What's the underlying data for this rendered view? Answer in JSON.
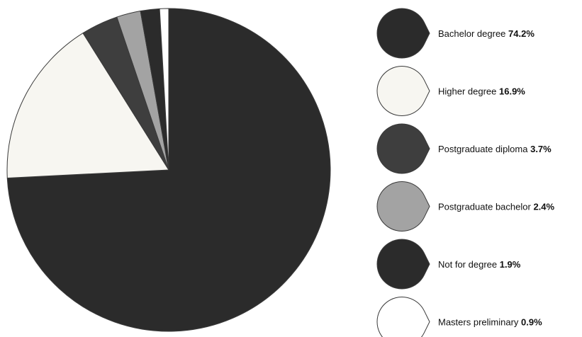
{
  "chart_data": {
    "type": "pie",
    "title": "",
    "unit": "%",
    "start_angle_deg": 90,
    "direction": "clockwise",
    "legend_position": "right",
    "slices": [
      {
        "label": "Bachelor degree",
        "value": 74.2,
        "value_label": "74.2%",
        "color": "#2b2b2b"
      },
      {
        "label": "Higher degree",
        "value": 16.9,
        "value_label": "16.9%",
        "color": "#f7f6f1"
      },
      {
        "label": "Postgraduate diploma",
        "value": 3.7,
        "value_label": "3.7%",
        "color": "#3e3e3e"
      },
      {
        "label": "Postgraduate bachelor",
        "value": 2.4,
        "value_label": "2.4%",
        "color": "#a3a3a3"
      },
      {
        "label": "Not for degree",
        "value": 1.9,
        "value_label": "1.9%",
        "color": "#2b2b2b"
      },
      {
        "label": "Masters preliminary",
        "value": 0.9,
        "value_label": "0.9%",
        "color": "#ffffff"
      }
    ]
  }
}
